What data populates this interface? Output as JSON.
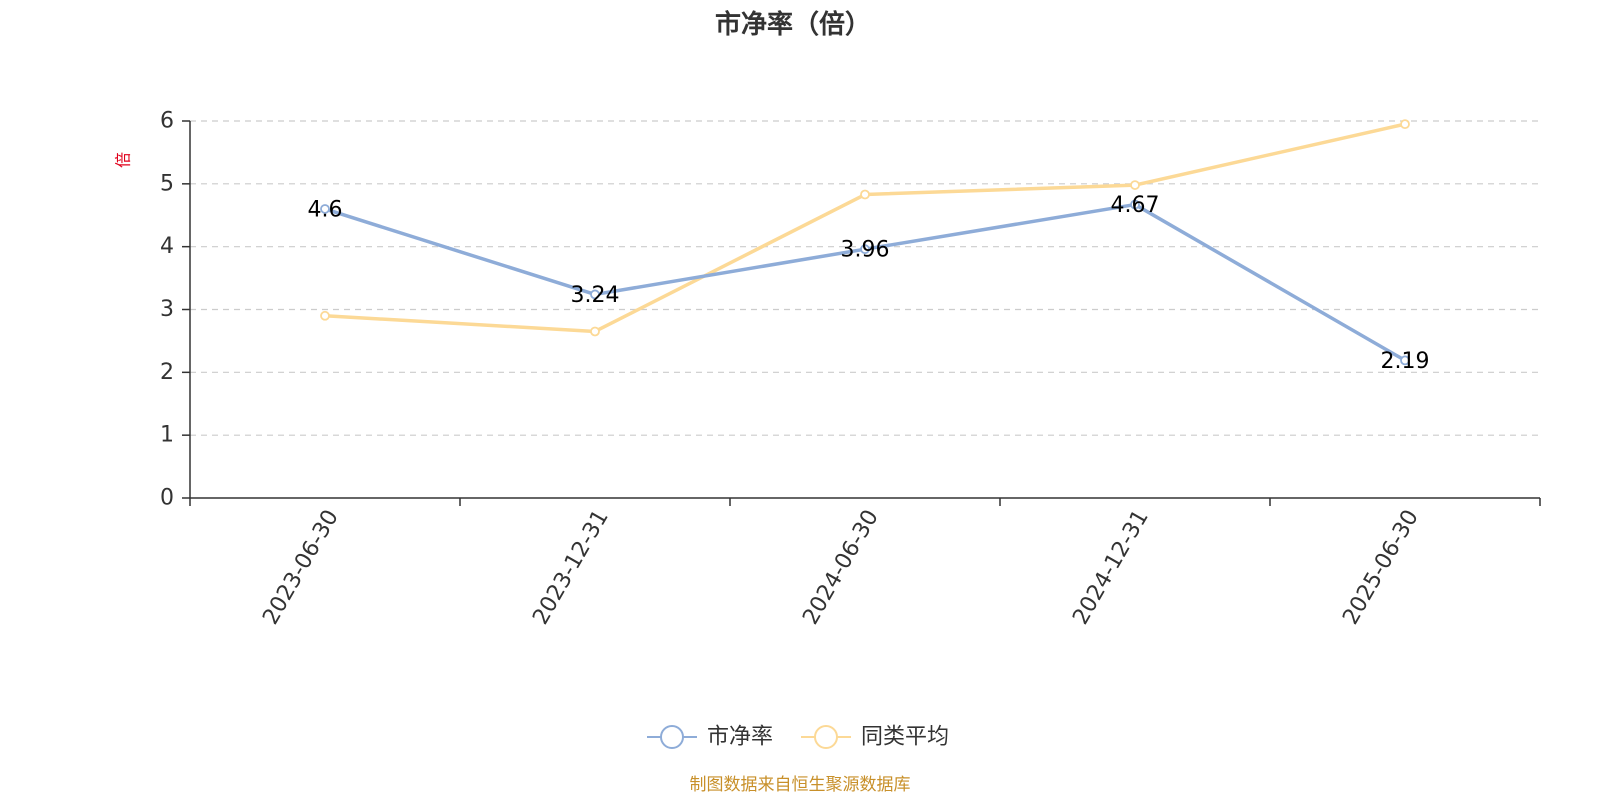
{
  "chart_data": {
    "type": "line",
    "title": "市净率（倍）",
    "ylabel": "倍",
    "xlabel": "",
    "categories": [
      "2023-06-30",
      "2023-12-31",
      "2024-06-30",
      "2024-12-31",
      "2025-06-30"
    ],
    "ylim": [
      0,
      6
    ],
    "yticks": [
      "0",
      "1",
      "2",
      "3",
      "4",
      "5",
      "6"
    ],
    "grid": true,
    "legend_position": "bottom",
    "series": [
      {
        "name": "市净率",
        "values": [
          4.6,
          3.24,
          3.96,
          4.67,
          2.19
        ],
        "labels": [
          "4.6",
          "3.24",
          "3.96",
          "4.67",
          "2.19"
        ],
        "color": "#8eacd8"
      },
      {
        "name": "同类平均",
        "values": [
          2.9,
          2.65,
          4.83,
          4.98,
          5.95
        ],
        "color": "#fcd996"
      }
    ],
    "source": "制图数据来自恒生聚源数据库",
    "colors": {
      "axis": "#333333",
      "grid": "#cccccc",
      "ylabel": "#e0001b",
      "source": "#c8902a"
    }
  }
}
